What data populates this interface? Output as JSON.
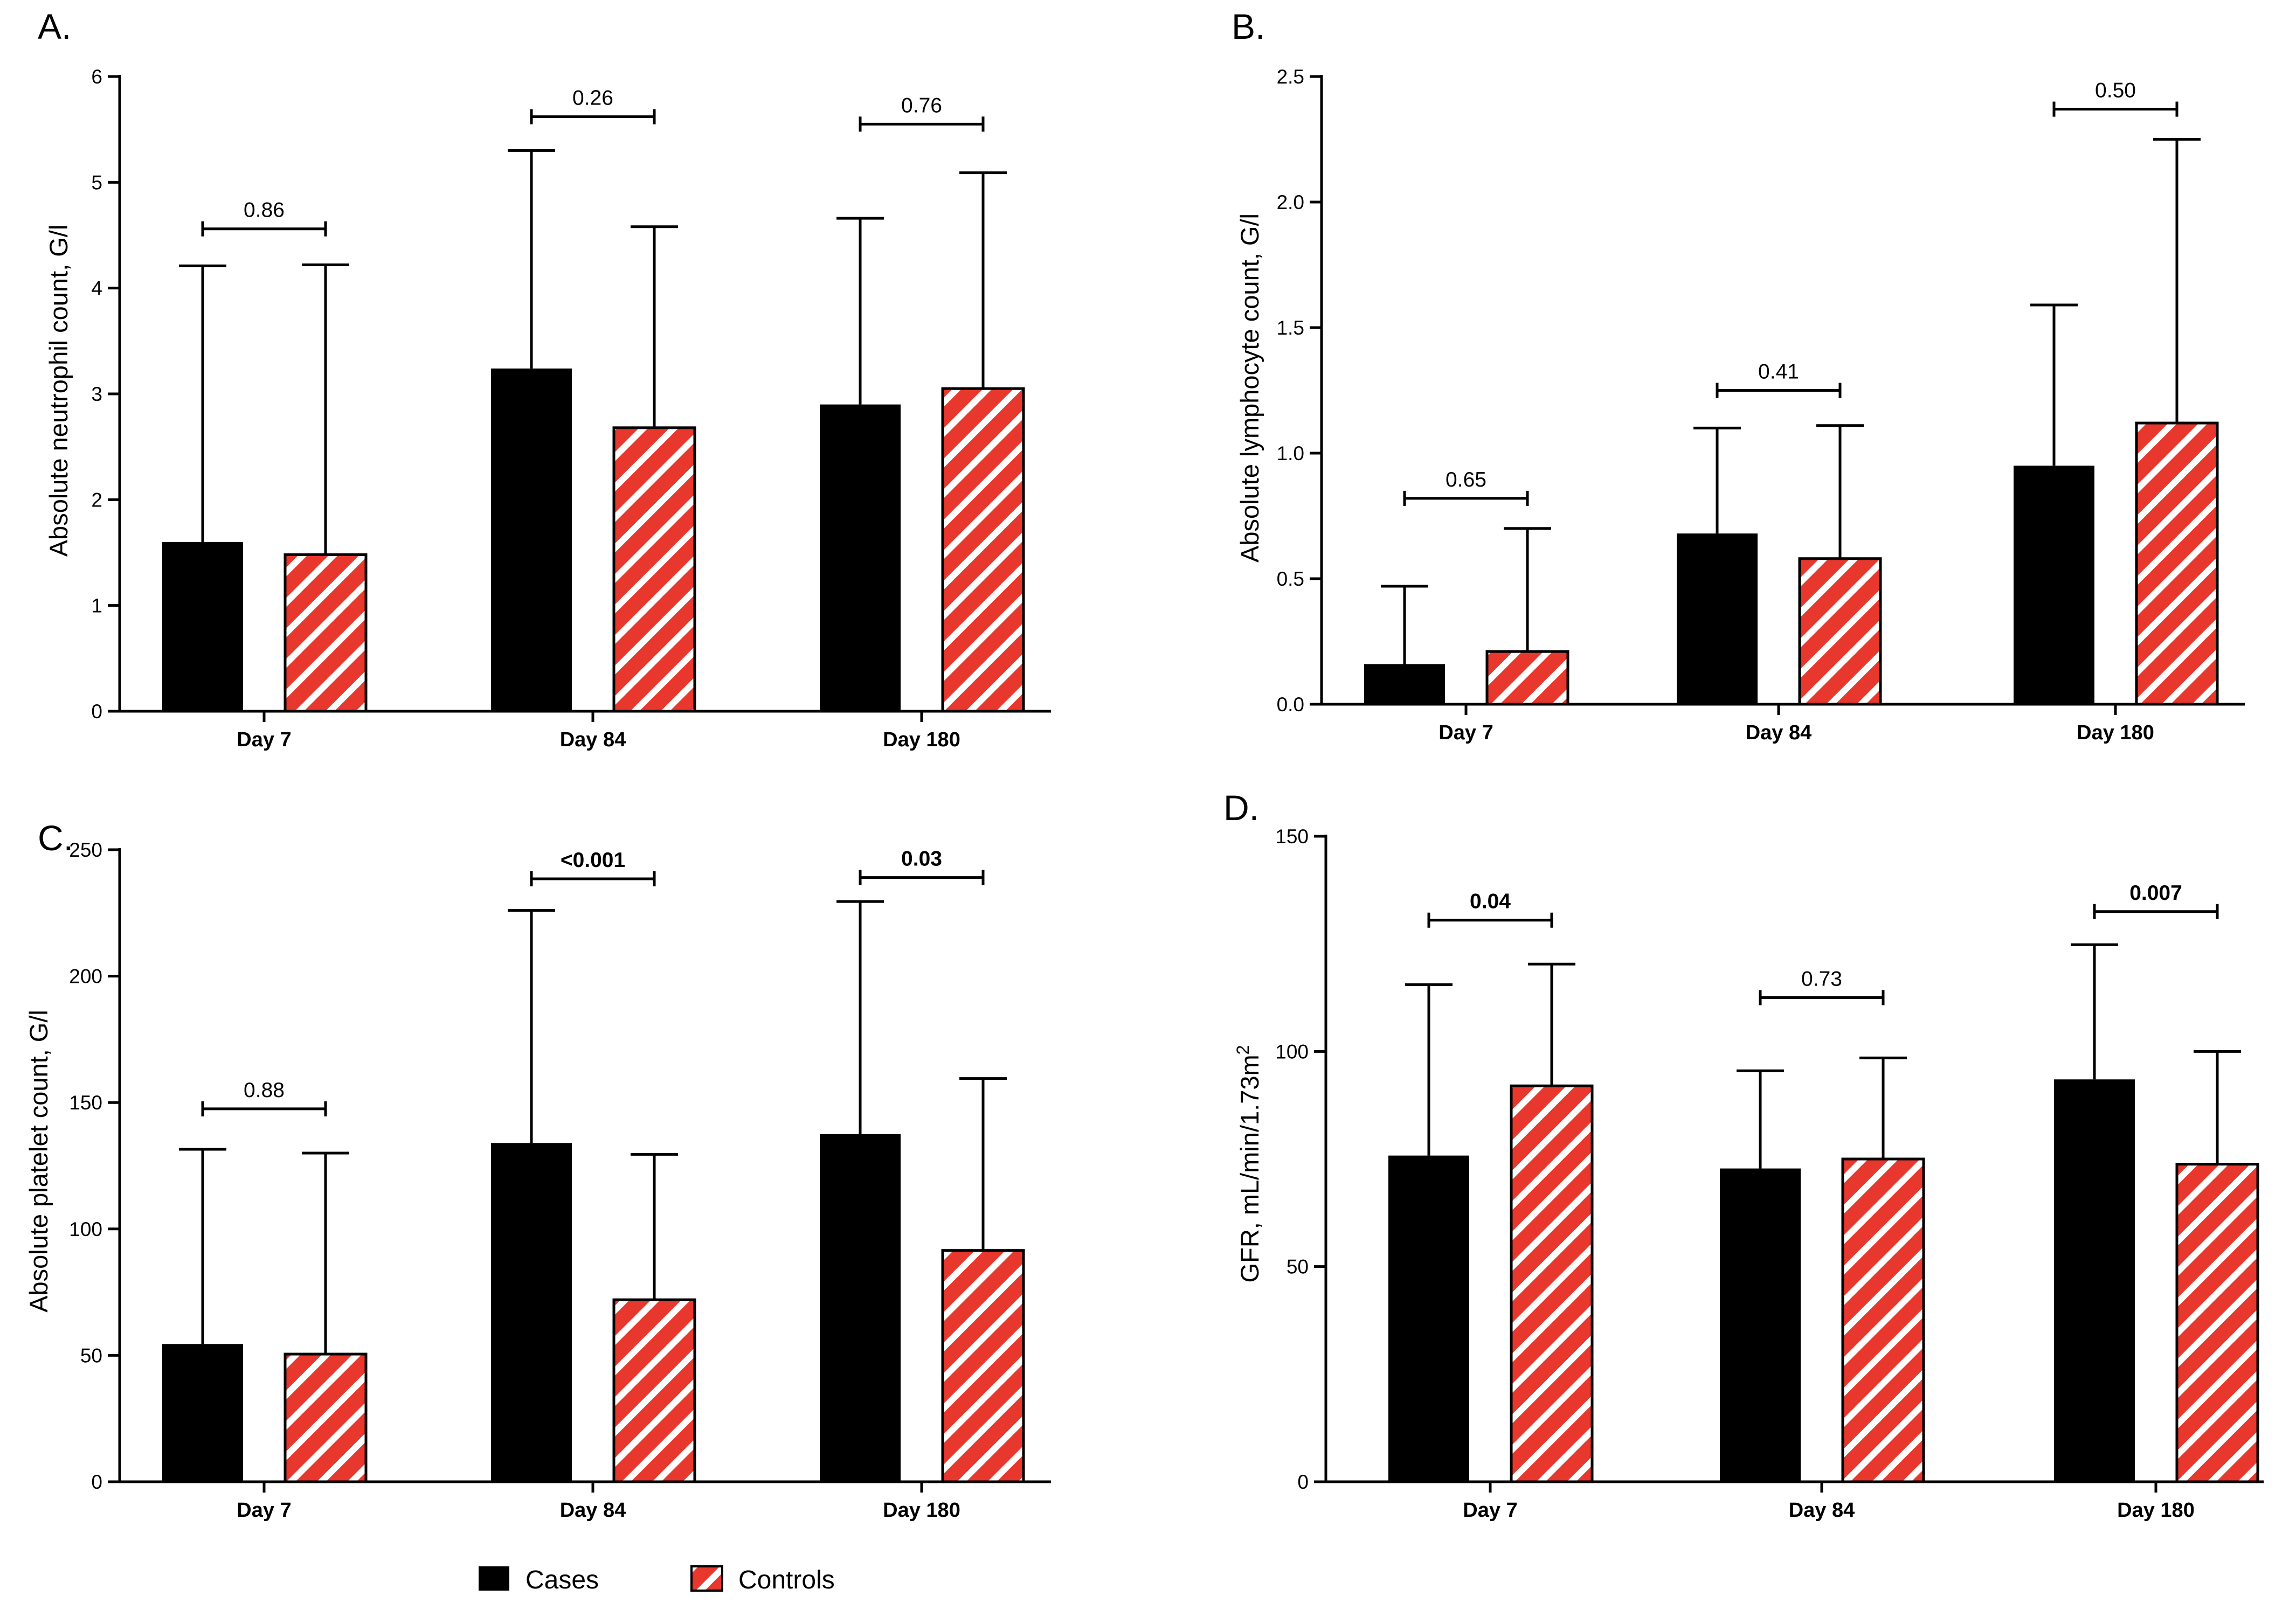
{
  "colors": {
    "cases": "#000000",
    "controls_fill": "#e8382e",
    "controls_stripe": "#ffffff",
    "axis": "#000000"
  },
  "legend": {
    "cases_label": "Cases",
    "controls_label": "Controls"
  },
  "chart_data": [
    {
      "panel": "A.",
      "type": "bar",
      "ylabel": "Absolute neutrophil count, G/l",
      "categories": [
        "Day 7",
        "Day 84",
        "Day 180"
      ],
      "ylim": [
        0,
        6
      ],
      "yticks": [
        0,
        1,
        2,
        3,
        4,
        5,
        6
      ],
      "ytick_labels": [
        "0",
        "1",
        "2",
        "3",
        "4",
        "5",
        "6"
      ],
      "series": [
        {
          "name": "Cases",
          "values": [
            1.6,
            3.24,
            2.9
          ],
          "error_upper": [
            4.21,
            5.3,
            4.66
          ]
        },
        {
          "name": "Controls",
          "values": [
            1.48,
            2.68,
            3.05
          ],
          "error_upper": [
            4.22,
            4.58,
            5.09
          ]
        }
      ],
      "pvalues": [
        {
          "label": "0.86",
          "bold": false,
          "level": 4.56
        },
        {
          "label": "0.26",
          "bold": false,
          "level": 5.62
        },
        {
          "label": "0.76",
          "bold": false,
          "level": 5.55
        }
      ]
    },
    {
      "panel": "B.",
      "type": "bar",
      "ylabel": "Absolute lymphocyte count, G/l",
      "categories": [
        "Day 7",
        "Day 84",
        "Day 180"
      ],
      "ylim": [
        0,
        2.5
      ],
      "yticks": [
        0,
        0.5,
        1,
        1.5,
        2,
        2.5
      ],
      "ytick_labels": [
        "0.0",
        "0.5",
        "1.0",
        "1.5",
        "2.0",
        "2.5"
      ],
      "series": [
        {
          "name": "Cases",
          "values": [
            0.16,
            0.68,
            0.95
          ],
          "error_upper": [
            0.47,
            1.1,
            1.59
          ]
        },
        {
          "name": "Controls",
          "values": [
            0.21,
            0.58,
            1.12
          ],
          "error_upper": [
            0.7,
            1.11,
            2.25
          ]
        }
      ],
      "pvalues": [
        {
          "label": "0.65",
          "bold": false,
          "level": 0.82
        },
        {
          "label": "0.41",
          "bold": false,
          "level": 1.25
        },
        {
          "label": "0.50",
          "bold": false,
          "level": 2.37
        }
      ]
    },
    {
      "panel": "C.",
      "type": "bar",
      "ylabel": "Absolute platelet count, G/l",
      "categories": [
        "Day 7",
        "Day 84",
        "Day 180"
      ],
      "ylim": [
        0,
        250
      ],
      "yticks": [
        0,
        50,
        100,
        150,
        200,
        250
      ],
      "ytick_labels": [
        "0",
        "50",
        "100",
        "150",
        "200",
        "250"
      ],
      "series": [
        {
          "name": "Cases",
          "values": [
            54.5,
            134,
            137.5
          ],
          "error_upper": [
            131.5,
            226,
            229.5
          ]
        },
        {
          "name": "Controls",
          "values": [
            50.5,
            72,
            91.5
          ],
          "error_upper": [
            130,
            129.5,
            159.5
          ]
        }
      ],
      "pvalues": [
        {
          "label": "0.88",
          "bold": false,
          "level": 147.5
        },
        {
          "label": "<0.001",
          "bold": true,
          "level": 238.5
        },
        {
          "label": "0.03",
          "bold": true,
          "level": 239
        }
      ]
    },
    {
      "panel": "D.",
      "type": "bar",
      "ylabel": "GFR, mL/min/1.73m",
      "ylabel_superscript": "2",
      "categories": [
        "Day 7",
        "Day 84",
        "Day 180"
      ],
      "ylim": [
        0,
        150
      ],
      "yticks": [
        0,
        50,
        100,
        150
      ],
      "ytick_labels": [
        "0",
        "50",
        "100",
        "150"
      ],
      "series": [
        {
          "name": "Cases",
          "values": [
            75.8,
            72.8,
            93.5
          ],
          "error_upper": [
            115.5,
            95.5,
            124.8
          ]
        },
        {
          "name": "Controls",
          "values": [
            92,
            75,
            73.8
          ],
          "error_upper": [
            120.3,
            98.5,
            100
          ]
        }
      ],
      "pvalues": [
        {
          "label": "0.04",
          "bold": true,
          "level": 130.5
        },
        {
          "label": "0.73",
          "bold": false,
          "level": 112.5
        },
        {
          "label": "0.007",
          "bold": true,
          "level": 132.5
        }
      ]
    }
  ]
}
